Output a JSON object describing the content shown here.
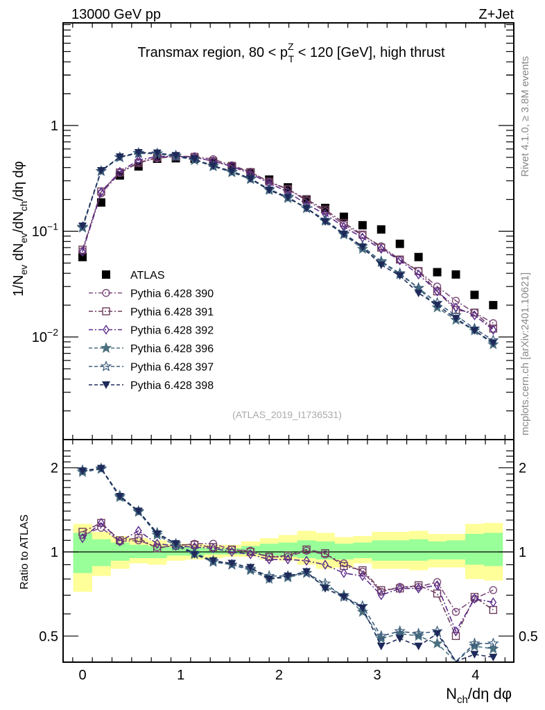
{
  "header": {
    "left": "13000 GeV pp",
    "right": "Z+Jet"
  },
  "side_labels": {
    "rivet": "Rivet 4.1.0, ≥ 3.8M events",
    "mcplots": "mcplots.cern.ch [arXiv:2401.10621]"
  },
  "watermark": "(ATLAS_2019_I1736531)",
  "colors": {
    "band_inner": "#99ff99",
    "band_outer": "#ffff99",
    "atlas": "#000000"
  },
  "chart_data": [
    {
      "type": "scatter",
      "panel": "main",
      "title": "Transmax region, 80 < pT^Z < 120 [GeV], high thrust",
      "title_parts": {
        "pre": "Transmax region, 80 < p",
        "sup": "Z",
        "sub": "T",
        "post": " < 120 [GeV], high thrust"
      },
      "ylabel": "1/N_ev dN_ev/dN_ch/dη dφ",
      "yscale": "log",
      "ylim": [
        0.0011,
        3.0
      ],
      "xlim": [
        -0.2,
        4.35
      ],
      "yticks": [
        {
          "v": 0.01,
          "label": "10",
          "exp": "−2"
        },
        {
          "v": 0.1,
          "label": "10",
          "exp": "−1"
        },
        {
          "v": 1,
          "label": "1",
          "exp": ""
        }
      ],
      "legend_position": "center-left",
      "x": [
        0.0,
        0.19,
        0.38,
        0.57,
        0.76,
        0.95,
        1.14,
        1.33,
        1.52,
        1.71,
        1.9,
        2.09,
        2.28,
        2.47,
        2.66,
        2.85,
        3.04,
        3.23,
        3.42,
        3.61,
        3.8,
        3.99,
        4.18
      ],
      "series": [
        {
          "name": "ATLAS",
          "marker": "square-filled",
          "color": "#000000",
          "line": "none",
          "values": [
            0.057,
            0.187,
            0.337,
            0.41,
            0.485,
            0.49,
            0.485,
            0.445,
            0.41,
            0.36,
            0.308,
            0.26,
            0.2,
            0.166,
            0.137,
            0.114,
            0.104,
            0.076,
            0.057,
            0.041,
            0.039,
            0.025,
            0.02
          ]
        },
        {
          "name": "Pythia 6.428 390",
          "marker": "circle-open",
          "color": "#7b4a7b",
          "line": "dashdot",
          "values": [
            0.065,
            0.228,
            0.355,
            0.45,
            0.49,
            0.51,
            0.51,
            0.48,
            0.42,
            0.365,
            0.29,
            0.25,
            0.195,
            0.155,
            0.115,
            0.092,
            0.072,
            0.054,
            0.042,
            0.03,
            0.022,
            0.017,
            0.0135
          ]
        },
        {
          "name": "Pythia 6.428 391",
          "marker": "square-open",
          "color": "#6b3b5b",
          "line": "dashdot",
          "values": [
            0.067,
            0.238,
            0.36,
            0.44,
            0.5,
            0.51,
            0.505,
            0.46,
            0.415,
            0.36,
            0.295,
            0.25,
            0.2,
            0.16,
            0.12,
            0.093,
            0.07,
            0.054,
            0.042,
            0.027,
            0.018,
            0.017,
            0.012
          ]
        },
        {
          "name": "Pythia 6.428 392",
          "marker": "diamond-open",
          "color": "#5a2a8a",
          "line": "dashdot",
          "values": [
            0.064,
            0.235,
            0.365,
            0.47,
            0.51,
            0.51,
            0.5,
            0.46,
            0.41,
            0.35,
            0.285,
            0.235,
            0.18,
            0.145,
            0.11,
            0.087,
            0.068,
            0.053,
            0.039,
            0.027,
            0.019,
            0.016,
            0.0117
          ]
        },
        {
          "name": "Pythia 6.428 396",
          "marker": "star-filled",
          "color": "#4a7080",
          "line": "dashed",
          "values": [
            0.108,
            0.37,
            0.5,
            0.545,
            0.54,
            0.51,
            0.47,
            0.41,
            0.36,
            0.31,
            0.245,
            0.205,
            0.165,
            0.125,
            0.093,
            0.068,
            0.051,
            0.039,
            0.029,
            0.019,
            0.0145,
            0.0115,
            0.0085
          ]
        },
        {
          "name": "Pythia 6.428 397",
          "marker": "star-open",
          "color": "#3a5a7a",
          "line": "dashed",
          "values": [
            0.11,
            0.37,
            0.5,
            0.55,
            0.545,
            0.52,
            0.475,
            0.415,
            0.365,
            0.315,
            0.25,
            0.21,
            0.165,
            0.128,
            0.095,
            0.072,
            0.052,
            0.04,
            0.029,
            0.021,
            0.016,
            0.012,
            0.0093
          ]
        },
        {
          "name": "Pythia 6.428 398",
          "marker": "triangle-down-filled",
          "color": "#1e2a5a",
          "line": "dashed",
          "values": [
            0.112,
            0.375,
            0.505,
            0.555,
            0.55,
            0.52,
            0.48,
            0.415,
            0.37,
            0.315,
            0.245,
            0.21,
            0.165,
            0.123,
            0.094,
            0.071,
            0.048,
            0.038,
            0.026,
            0.02,
            0.015,
            0.0115,
            0.0088
          ]
        }
      ]
    },
    {
      "type": "scatter",
      "panel": "ratio",
      "ylabel": "Ratio to ATLAS",
      "xlabel": "N_ch/dη dφ",
      "yscale": "log",
      "ylim": [
        0.42,
        2.35
      ],
      "xlim": [
        -0.2,
        4.35
      ],
      "yticks": [
        {
          "v": 0.5,
          "label": "0.5"
        },
        {
          "v": 1,
          "label": "1"
        },
        {
          "v": 2,
          "label": "2"
        }
      ],
      "xticks": [
        0,
        1,
        2,
        3,
        4
      ],
      "x": [
        0.0,
        0.19,
        0.38,
        0.57,
        0.76,
        0.95,
        1.14,
        1.33,
        1.52,
        1.71,
        1.9,
        2.09,
        2.28,
        2.47,
        2.66,
        2.85,
        3.04,
        3.23,
        3.42,
        3.61,
        3.8,
        3.99,
        4.18
      ],
      "band_outer": {
        "lo": [
          0.72,
          0.82,
          0.87,
          0.91,
          0.9,
          0.93,
          0.94,
          0.95,
          0.96,
          0.96,
          0.94,
          0.93,
          0.9,
          0.87,
          0.88,
          0.91,
          0.87,
          0.87,
          0.86,
          0.88,
          0.88,
          0.8,
          0.79
        ],
        "hi": [
          1.26,
          1.18,
          1.14,
          1.12,
          1.1,
          1.07,
          1.07,
          1.06,
          1.06,
          1.09,
          1.12,
          1.15,
          1.19,
          1.17,
          1.13,
          1.14,
          1.18,
          1.18,
          1.19,
          1.16,
          1.16,
          1.26,
          1.27
        ]
      },
      "band_inner": {
        "lo": [
          0.84,
          0.89,
          0.93,
          0.95,
          0.95,
          0.97,
          0.97,
          0.98,
          0.98,
          0.98,
          0.97,
          0.96,
          0.95,
          0.94,
          0.94,
          0.95,
          0.93,
          0.93,
          0.93,
          0.94,
          0.94,
          0.9,
          0.89
        ],
        "hi": [
          1.17,
          1.11,
          1.08,
          1.06,
          1.05,
          1.04,
          1.04,
          1.03,
          1.03,
          1.05,
          1.07,
          1.08,
          1.1,
          1.09,
          1.07,
          1.08,
          1.1,
          1.1,
          1.11,
          1.09,
          1.1,
          1.16,
          1.17
        ]
      },
      "series": [
        {
          "name": "Pythia 6.428 390",
          "values": [
            1.15,
            1.22,
            1.09,
            1.1,
            1.04,
            1.05,
            1.07,
            1.07,
            1.02,
            1.01,
            0.96,
            0.96,
            1.01,
            0.98,
            0.91,
            0.85,
            0.72,
            0.75,
            0.75,
            0.78,
            0.61,
            0.68,
            0.73
          ]
        },
        {
          "name": "Pythia 6.428 391",
          "values": [
            1.18,
            1.27,
            1.1,
            1.12,
            1.03,
            1.06,
            1.06,
            1.04,
            1.02,
            1.0,
            0.96,
            0.97,
            1.02,
            0.99,
            0.89,
            0.86,
            0.73,
            0.74,
            0.76,
            0.71,
            0.5,
            0.69,
            0.62
          ]
        },
        {
          "name": "Pythia 6.428 392",
          "values": [
            1.12,
            1.27,
            1.09,
            1.19,
            1.07,
            1.05,
            1.04,
            1.03,
            1.0,
            0.98,
            0.94,
            0.94,
            0.93,
            0.9,
            0.84,
            0.82,
            0.7,
            0.74,
            0.74,
            0.76,
            0.52,
            0.68,
            0.66
          ]
        },
        {
          "name": "Pythia 6.428 396",
          "values": [
            1.93,
            1.98,
            1.57,
            1.39,
            1.15,
            1.05,
            0.98,
            0.92,
            0.9,
            0.86,
            0.8,
            0.81,
            0.84,
            0.75,
            0.7,
            0.61,
            0.49,
            0.51,
            0.5,
            0.47,
            0.38,
            0.46,
            0.45
          ]
        },
        {
          "name": "Pythia 6.428 397",
          "values": [
            1.96,
            1.99,
            1.59,
            1.4,
            1.17,
            1.07,
            0.99,
            0.93,
            0.9,
            0.87,
            0.82,
            0.82,
            0.84,
            0.77,
            0.69,
            0.64,
            0.5,
            0.52,
            0.51,
            0.52,
            0.4,
            0.47,
            0.47
          ]
        },
        {
          "name": "Pythia 6.428 398",
          "values": [
            1.95,
            1.99,
            1.58,
            1.4,
            1.16,
            1.07,
            0.98,
            0.93,
            0.91,
            0.88,
            0.8,
            0.82,
            0.85,
            0.74,
            0.69,
            0.63,
            0.46,
            0.49,
            0.46,
            0.51,
            0.38,
            0.43,
            0.42
          ]
        }
      ]
    }
  ]
}
